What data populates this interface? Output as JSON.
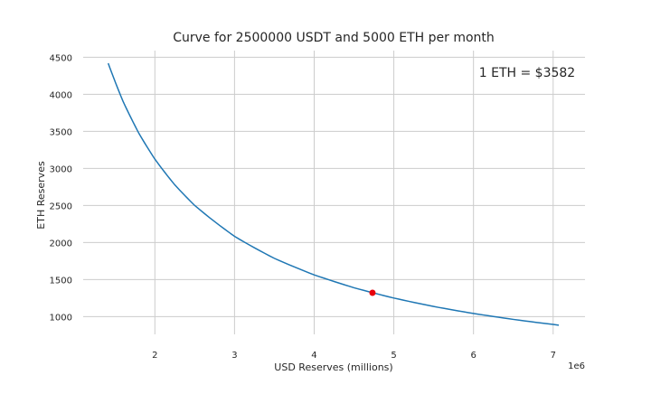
{
  "chart_data": {
    "type": "line",
    "title": "Curve for 2500000 USDT and 5000 ETH per month",
    "xlabel": "USD Reserves (millions)",
    "ylabel": "ETH Reserves",
    "x_offset_label": "1e6",
    "annotation": "1 ETH = $3582",
    "xlim": [
      1.1,
      7.4
    ],
    "ylim": [
      760,
      4590
    ],
    "x_ticks": [
      2,
      3,
      4,
      5,
      6,
      7
    ],
    "y_ticks": [
      1000,
      1500,
      2000,
      2500,
      3000,
      3500,
      4000,
      4500
    ],
    "grid": true,
    "series": [
      {
        "x": [
          1.414,
          1.6,
          1.8,
          2.0,
          2.25,
          2.5,
          3.0,
          3.5,
          4.0,
          4.5,
          5.0,
          5.5,
          6.0,
          6.5,
          7.071
        ],
        "y": [
          4419,
          3906,
          3472,
          3125,
          2778,
          2500,
          2083,
          1786,
          1563,
          1389,
          1250,
          1136,
          1042,
          962,
          884
        ],
        "color": "#1f77b4"
      }
    ],
    "marker": {
      "x": 4.732,
      "y": 1321,
      "color": "#e8000b"
    }
  }
}
